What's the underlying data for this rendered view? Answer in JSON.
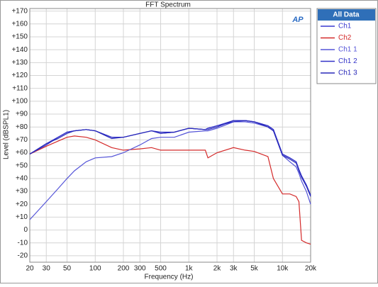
{
  "chart_data": {
    "type": "line",
    "title": "FFT Spectrum",
    "logo": "AP",
    "x_label": "Frequency (Hz)",
    "y_label": "Level (dBSPL1)",
    "x_scale": "log",
    "grid": true,
    "legend_position": "right",
    "legend_title": "All Data",
    "xlim": [
      20,
      20000
    ],
    "ylim": [
      -25,
      172
    ],
    "xticks": [
      20,
      30,
      50,
      100,
      200,
      300,
      500,
      {
        "value": 1000,
        "label": "1k"
      },
      {
        "value": 2000,
        "label": "2k"
      },
      {
        "value": 3000,
        "label": "3k"
      },
      {
        "value": 5000,
        "label": "5k"
      },
      {
        "value": 10000,
        "label": "10k"
      },
      {
        "value": 20000,
        "label": "20k"
      }
    ],
    "yticks": [
      -20,
      -10,
      0,
      {
        "value": 10,
        "label": "+10"
      },
      {
        "value": 20,
        "label": "+20"
      },
      {
        "value": 30,
        "label": "+30"
      },
      {
        "value": 40,
        "label": "+40"
      },
      {
        "value": 50,
        "label": "+50"
      },
      {
        "value": 60,
        "label": "+60"
      },
      {
        "value": 70,
        "label": "+70"
      },
      {
        "value": 80,
        "label": "+80"
      },
      {
        "value": 90,
        "label": "+90"
      },
      {
        "value": 100,
        "label": "+100"
      },
      {
        "value": 110,
        "label": "+110"
      },
      {
        "value": 120,
        "label": "+120"
      },
      {
        "value": 130,
        "label": "+130"
      },
      {
        "value": 140,
        "label": "+140"
      },
      {
        "value": 150,
        "label": "+150"
      },
      {
        "value": 160,
        "label": "+160"
      },
      {
        "value": 170,
        "label": "+170"
      }
    ],
    "x": [
      20,
      30,
      40,
      50,
      60,
      80,
      100,
      150,
      200,
      300,
      400,
      500,
      700,
      1000,
      1500,
      1600,
      2000,
      3000,
      4000,
      5000,
      7000,
      8000,
      10000,
      12000,
      14000,
      15000,
      16000,
      18000,
      20000
    ],
    "series": [
      {
        "name": "Ch1",
        "color": "#3a3ad0",
        "values": [
          59,
          67,
          72,
          76,
          77,
          78,
          77,
          72,
          72,
          75,
          77,
          75,
          76,
          79,
          78,
          79,
          81,
          85,
          85,
          84,
          81,
          78,
          59,
          56,
          53,
          47,
          42,
          35,
          27
        ]
      },
      {
        "name": "Ch2",
        "color": "#d42a2a",
        "values": [
          59,
          65,
          69,
          72,
          73,
          72,
          70,
          64,
          62,
          63,
          64,
          62,
          62,
          62,
          62,
          56,
          60,
          64,
          62,
          61,
          57,
          40,
          28,
          28,
          26,
          22,
          -8,
          -10,
          -11
        ]
      },
      {
        "name": "Ch1 1",
        "color": "#5555d8",
        "values": [
          8,
          22,
          32,
          40,
          46,
          53,
          56,
          57,
          60,
          66,
          71,
          72,
          72,
          76,
          77,
          77,
          79,
          84,
          84,
          83,
          80,
          77,
          58,
          53,
          49,
          44,
          38,
          30,
          20
        ]
      },
      {
        "name": "Ch1 2",
        "color": "#3232c8",
        "values": [
          59,
          66,
          72,
          76,
          77,
          78,
          77,
          72,
          72,
          75,
          77,
          76,
          76,
          79,
          78,
          79,
          81,
          84,
          85,
          84,
          81,
          78,
          59,
          56,
          53,
          47,
          42,
          35,
          27
        ]
      },
      {
        "name": "Ch1 3",
        "color": "#2828b8",
        "values": [
          59,
          67,
          71,
          75,
          77,
          78,
          77,
          71,
          72,
          75,
          77,
          75,
          76,
          79,
          78,
          78,
          80,
          85,
          85,
          84,
          80,
          77,
          58,
          55,
          52,
          46,
          41,
          34,
          26
        ]
      }
    ]
  }
}
